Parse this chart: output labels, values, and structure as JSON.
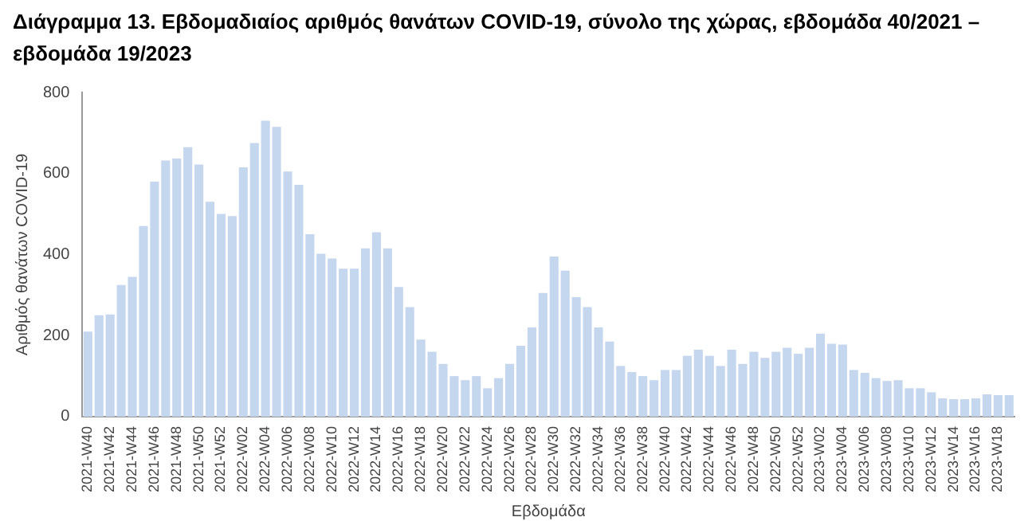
{
  "chart_data": {
    "type": "bar",
    "title": "Διάγραμμα 13. Εβδομαδιαίος αριθμός θανάτων COVID-19, σύνολο της χώρας, εβδομάδα 40/2021 – εβδομάδα 19/2023",
    "xlabel": "Εβδομάδα",
    "ylabel": "Αριθμός θανάτων COVID-19",
    "categories": [
      "2021-W40",
      null,
      "2021-W42",
      null,
      "2021-W44",
      null,
      "2021-W46",
      null,
      "2021-W48",
      null,
      "2021-W50",
      null,
      "2021-W52",
      null,
      "2022-W02",
      null,
      "2022-W04",
      null,
      "2022-W06",
      null,
      "2022-W08",
      null,
      "2022-W10",
      null,
      "2022-W12",
      null,
      "2022-W14",
      null,
      "2022-W16",
      null,
      "2022-W18",
      null,
      "2022-W20",
      null,
      "2022-W22",
      null,
      "2022-W24",
      null,
      "2022-W26",
      null,
      "2022-W28",
      null,
      "2022-W30",
      null,
      "2022-W32",
      null,
      "2022-W34",
      null,
      "2022-W36",
      null,
      "2022-W38",
      null,
      "2022-W40",
      null,
      "2022-W42",
      null,
      "2022-W44",
      null,
      "2022-W46",
      null,
      "2022-W48",
      null,
      "2022-W50",
      null,
      "2022-W52",
      null,
      "2023-W02",
      null,
      "2023-W04",
      null,
      "2023-W06",
      null,
      "2023-W08",
      null,
      "2023-W10",
      null,
      "2023-W12",
      null,
      "2023-W14",
      null,
      "2023-W16",
      null,
      "2023-W18",
      null
    ],
    "values": [
      210,
      250,
      252,
      325,
      345,
      470,
      580,
      632,
      637,
      665,
      622,
      530,
      500,
      495,
      615,
      675,
      730,
      715,
      605,
      572,
      450,
      402,
      390,
      365,
      365,
      415,
      455,
      415,
      320,
      270,
      190,
      160,
      130,
      100,
      90,
      100,
      70,
      95,
      130,
      175,
      220,
      305,
      395,
      360,
      295,
      270,
      220,
      185,
      125,
      110,
      100,
      90,
      115,
      115,
      150,
      165,
      150,
      125,
      165,
      130,
      160,
      145,
      160,
      170,
      155,
      170,
      205,
      180,
      178,
      115,
      108,
      95,
      88,
      90,
      70,
      70,
      60,
      45,
      43,
      43,
      45,
      55,
      53,
      53
    ],
    "color": "#c5d7ef",
    "ylim": [
      0,
      800
    ],
    "yticks": [
      0,
      200,
      400,
      600,
      800
    ],
    "grid": false,
    "legend": false
  }
}
